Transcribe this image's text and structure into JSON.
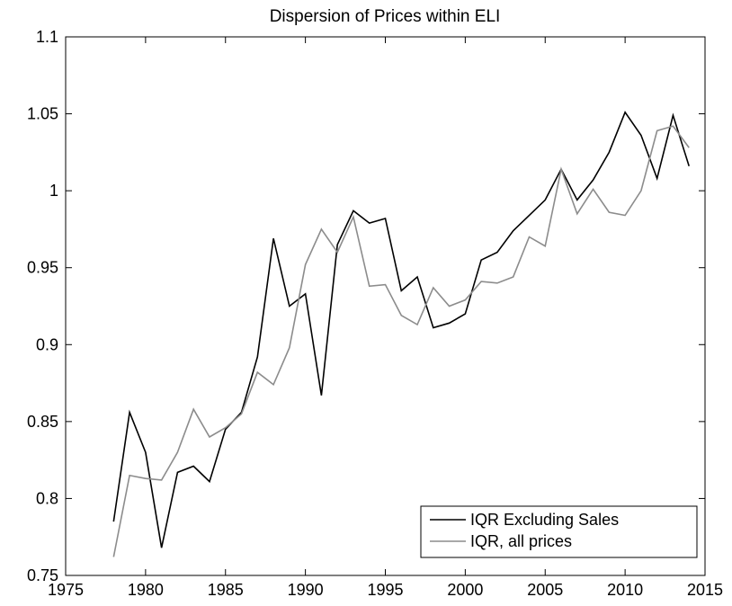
{
  "chart_data": {
    "type": "line",
    "title": "Dispersion of Prices within ELI",
    "x": [
      1978,
      1979,
      1980,
      1981,
      1982,
      1983,
      1984,
      1985,
      1986,
      1987,
      1988,
      1989,
      1990,
      1991,
      1992,
      1993,
      1994,
      1995,
      1996,
      1997,
      1998,
      1999,
      2000,
      2001,
      2002,
      2003,
      2004,
      2005,
      2006,
      2007,
      2008,
      2009,
      2010,
      2011,
      2012,
      2013,
      2014
    ],
    "series": [
      {
        "name": "IQR Excluding Sales",
        "color": "#000000",
        "values": [
          0.785,
          0.856,
          0.83,
          0.768,
          0.817,
          0.821,
          0.811,
          0.845,
          0.856,
          0.892,
          0.969,
          0.925,
          0.933,
          0.867,
          0.965,
          0.987,
          0.979,
          0.982,
          0.935,
          0.944,
          0.911,
          0.914,
          0.92,
          0.955,
          0.96,
          0.974,
          0.984,
          0.994,
          1.014,
          0.994,
          1.007,
          1.025,
          1.051,
          1.036,
          1.008,
          1.049,
          1.016
        ]
      },
      {
        "name": "IQR, all prices",
        "color": "#8c8c8c",
        "values": [
          0.762,
          0.815,
          0.813,
          0.812,
          0.83,
          0.858,
          0.84,
          0.846,
          0.855,
          0.882,
          0.874,
          0.898,
          0.952,
          0.975,
          0.96,
          0.983,
          0.938,
          0.939,
          0.919,
          0.913,
          0.937,
          0.925,
          0.929,
          0.941,
          0.94,
          0.944,
          0.97,
          0.964,
          1.014,
          0.985,
          1.001,
          0.986,
          0.984,
          1.0,
          1.039,
          1.042,
          1.028
        ]
      }
    ],
    "xlim": [
      1975,
      2015
    ],
    "xticks": [
      1975,
      1980,
      1985,
      1990,
      1995,
      2000,
      2005,
      2010,
      2015
    ],
    "ylim": [
      0.75,
      1.1
    ],
    "yticks": [
      0.75,
      0.8,
      0.85,
      0.9,
      0.95,
      1,
      1.05,
      1.1
    ],
    "grid": false,
    "legend": "lower right"
  }
}
